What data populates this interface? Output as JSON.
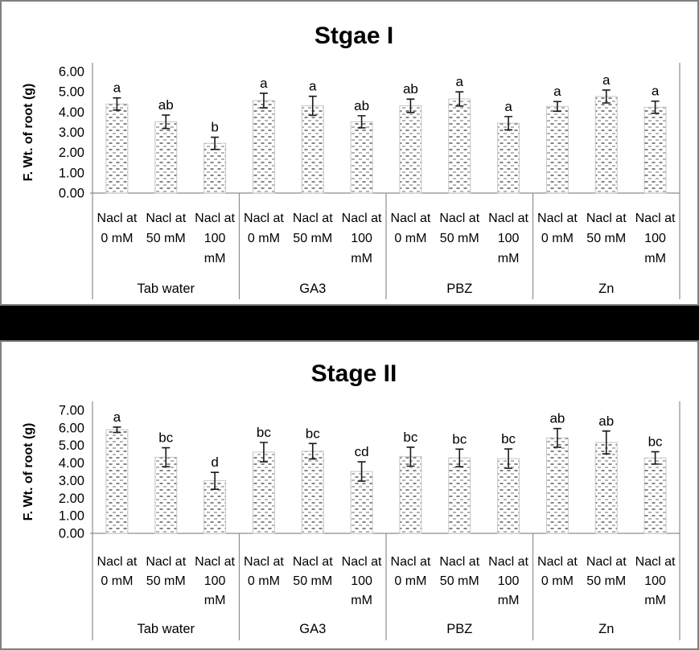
{
  "window": {
    "background": "#ffffff",
    "panel_border_color": "#808080",
    "separator_color": "#000000",
    "axis_color": "#8e8e8e",
    "error_bar_color": "#1a1a1a"
  },
  "chart_data": [
    {
      "type": "bar",
      "title": "Stgae I",
      "ylabel": "F. Wt. of root (g)",
      "xlabel": "",
      "ylim": [
        0,
        6
      ],
      "ytick_step": 1.0,
      "ytick_labels": [
        "0.00",
        "1.00",
        "2.00",
        "3.00",
        "4.00",
        "5.00",
        "6.00"
      ],
      "grid": false,
      "legend": false,
      "error_bars": true,
      "bar_style": {
        "fill": "stipple-dash-pattern",
        "stroke": "#c6c6c6",
        "dash_dark": "#666666",
        "dash_light": "#a3a3a3"
      },
      "groups": [
        {
          "label": "Tab water",
          "bars": [
            {
              "category_lines": [
                "Nacl at",
                "0 mM"
              ],
              "value": 4.4,
              "error": 0.3,
              "letter": "a"
            },
            {
              "category_lines": [
                "Nacl at",
                "50 mM"
              ],
              "value": 3.52,
              "error": 0.33,
              "letter": "ab"
            },
            {
              "category_lines": [
                "Nacl at",
                "100",
                "mM"
              ],
              "value": 2.46,
              "error": 0.3,
              "letter": "b"
            }
          ]
        },
        {
          "label": "GA3",
          "bars": [
            {
              "category_lines": [
                "Nacl at",
                "0 mM"
              ],
              "value": 4.57,
              "error": 0.36,
              "letter": "a"
            },
            {
              "category_lines": [
                "Nacl at",
                "50 mM"
              ],
              "value": 4.31,
              "error": 0.47,
              "letter": "a"
            },
            {
              "category_lines": [
                "Nacl at",
                "100",
                "mM"
              ],
              "value": 3.52,
              "error": 0.3,
              "letter": "ab"
            }
          ]
        },
        {
          "label": "PBZ",
          "bars": [
            {
              "category_lines": [
                "Nacl at",
                "0 mM"
              ],
              "value": 4.31,
              "error": 0.33,
              "letter": "ab"
            },
            {
              "category_lines": [
                "Nacl at",
                "50 mM"
              ],
              "value": 4.65,
              "error": 0.35,
              "letter": "a"
            },
            {
              "category_lines": [
                "Nacl at",
                "100",
                "mM"
              ],
              "value": 3.45,
              "error": 0.33,
              "letter": "a"
            }
          ]
        },
        {
          "label": "Zn",
          "bars": [
            {
              "category_lines": [
                "Nacl at",
                "0 mM"
              ],
              "value": 4.28,
              "error": 0.24,
              "letter": "a"
            },
            {
              "category_lines": [
                "Nacl at",
                "50 mM"
              ],
              "value": 4.77,
              "error": 0.32,
              "letter": "a"
            },
            {
              "category_lines": [
                "Nacl at",
                "100",
                "mM"
              ],
              "value": 4.24,
              "error": 0.3,
              "letter": "a"
            }
          ]
        }
      ]
    },
    {
      "type": "bar",
      "title": "Stage II",
      "ylabel": "F. Wt. of root (g)",
      "xlabel": "",
      "ylim": [
        0,
        7
      ],
      "ytick_step": 1.0,
      "ytick_labels": [
        "0.00",
        "1.00",
        "2.00",
        "3.00",
        "4.00",
        "5.00",
        "6.00",
        "7.00"
      ],
      "grid": false,
      "legend": false,
      "error_bars": true,
      "bar_style": {
        "fill": "stipple-dash-pattern",
        "stroke": "#c6c6c6",
        "dash_dark": "#666666",
        "dash_light": "#a3a3a3"
      },
      "groups": [
        {
          "label": "Tab water",
          "bars": [
            {
              "category_lines": [
                "Nacl at",
                "0 mM"
              ],
              "value": 5.89,
              "error": 0.15,
              "letter": "a"
            },
            {
              "category_lines": [
                "Nacl at",
                "50 mM"
              ],
              "value": 4.33,
              "error": 0.54,
              "letter": "bc"
            },
            {
              "category_lines": [
                "Nacl at",
                "100",
                "mM"
              ],
              "value": 2.99,
              "error": 0.48,
              "letter": "d"
            }
          ]
        },
        {
          "label": "GA3",
          "bars": [
            {
              "category_lines": [
                "Nacl at",
                "0 mM"
              ],
              "value": 4.62,
              "error": 0.55,
              "letter": "bc"
            },
            {
              "category_lines": [
                "Nacl at",
                "50 mM"
              ],
              "value": 4.67,
              "error": 0.44,
              "letter": "bc"
            },
            {
              "category_lines": [
                "Nacl at",
                "100",
                "mM"
              ],
              "value": 3.52,
              "error": 0.55,
              "letter": "cd"
            }
          ]
        },
        {
          "label": "PBZ",
          "bars": [
            {
              "category_lines": [
                "Nacl at",
                "0 mM"
              ],
              "value": 4.36,
              "error": 0.54,
              "letter": "bc"
            },
            {
              "category_lines": [
                "Nacl at",
                "50 mM"
              ],
              "value": 4.29,
              "error": 0.5,
              "letter": "bc"
            },
            {
              "category_lines": [
                "Nacl at",
                "100",
                "mM"
              ],
              "value": 4.25,
              "error": 0.55,
              "letter": "bc"
            }
          ]
        },
        {
          "label": "Zn",
          "bars": [
            {
              "category_lines": [
                "Nacl at",
                "0 mM"
              ],
              "value": 5.43,
              "error": 0.53,
              "letter": "ab"
            },
            {
              "category_lines": [
                "Nacl at",
                "50 mM"
              ],
              "value": 5.17,
              "error": 0.65,
              "letter": "ab"
            },
            {
              "category_lines": [
                "Nacl at",
                "100",
                "mM"
              ],
              "value": 4.29,
              "error": 0.35,
              "letter": "bc"
            }
          ]
        }
      ]
    }
  ]
}
